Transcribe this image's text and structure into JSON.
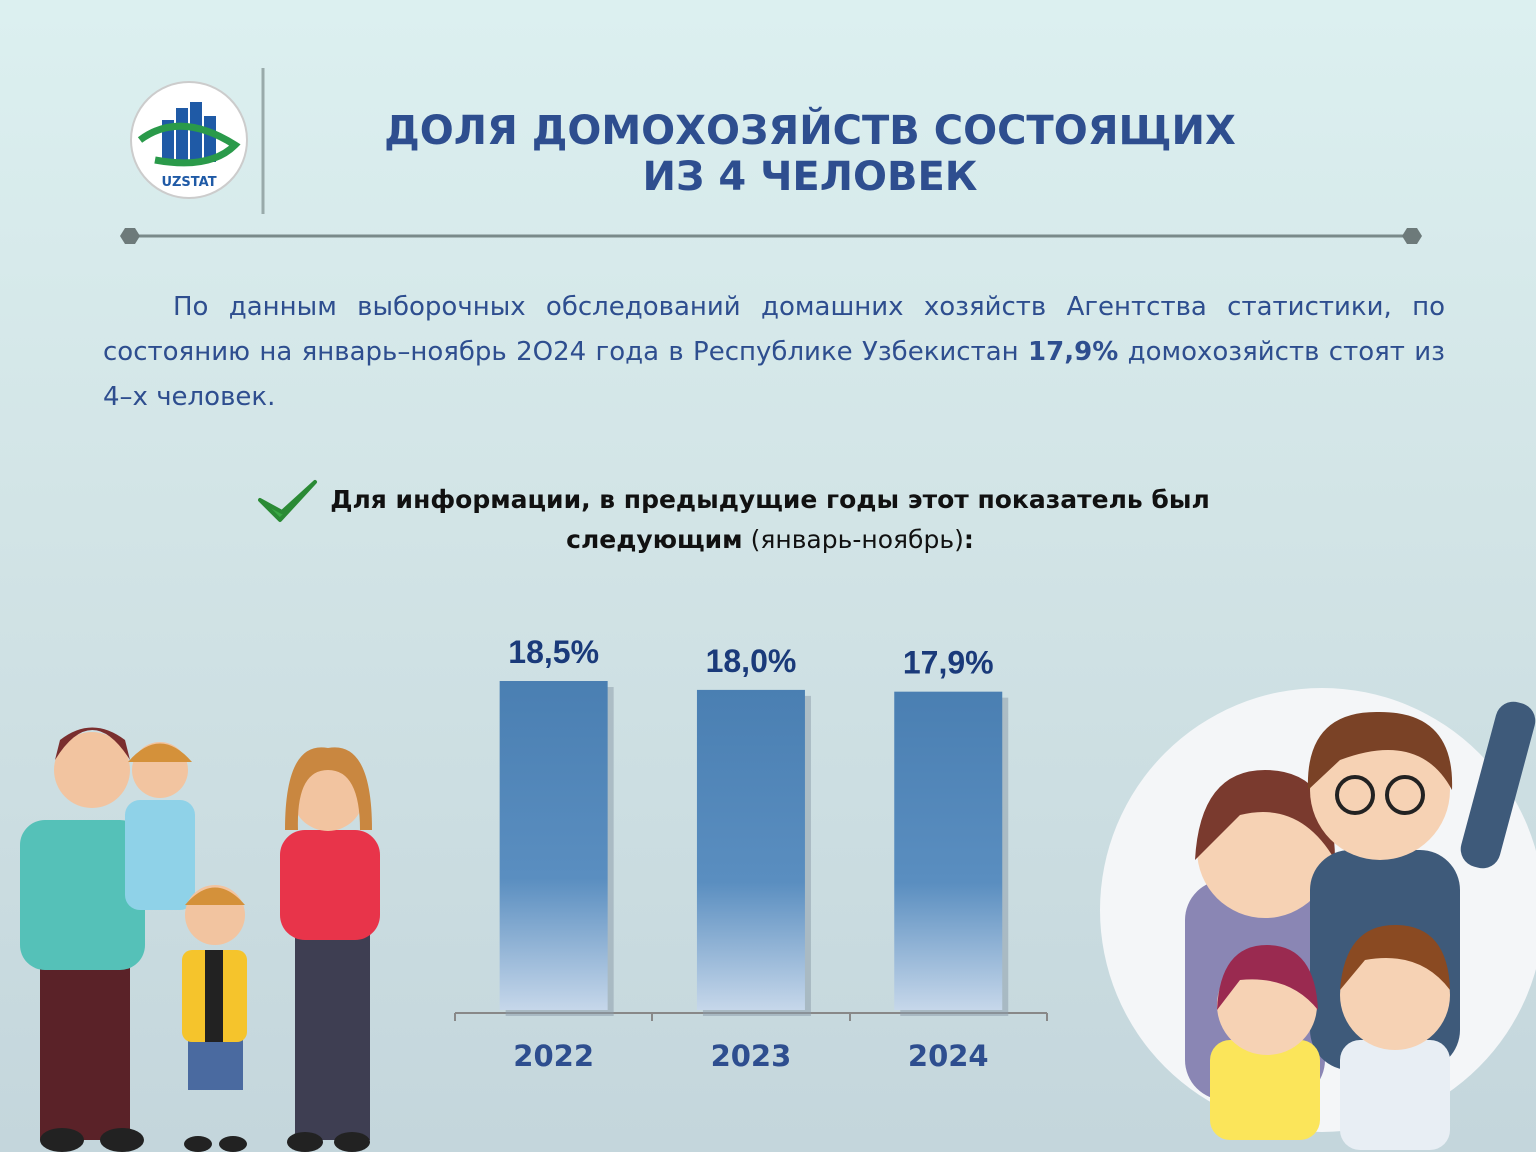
{
  "header": {
    "logo": "UZSTAT",
    "title": [
      "ДОЛЯ ДОМОХОЗЯЙСТВ СОСТОЯЩИХ",
      "ИЗ 4 ЧЕЛОВЕК"
    ]
  },
  "intro": {
    "before": "По данным выборочных обследований домашних хозяйств Агентства статистики, по состоянию на январь–ноябрь 2О24 года в Республике Узбекистан",
    "highlight": "17,9%",
    "after": "домохозяйств стоят из 4–х человек."
  },
  "note": {
    "bold": "Для информации, в предыдущие годы этот показатель был следующим",
    "normal": "(январь-ноябрь)",
    "end": ":"
  },
  "chart_data": {
    "type": "bar",
    "categories": [
      "2022",
      "2023",
      "2024"
    ],
    "values": [
      18.5,
      18.0,
      17.9
    ],
    "value_labels": [
      "18,5%",
      "18,0%",
      "17,9%"
    ],
    "color": "#4a7fb2"
  }
}
